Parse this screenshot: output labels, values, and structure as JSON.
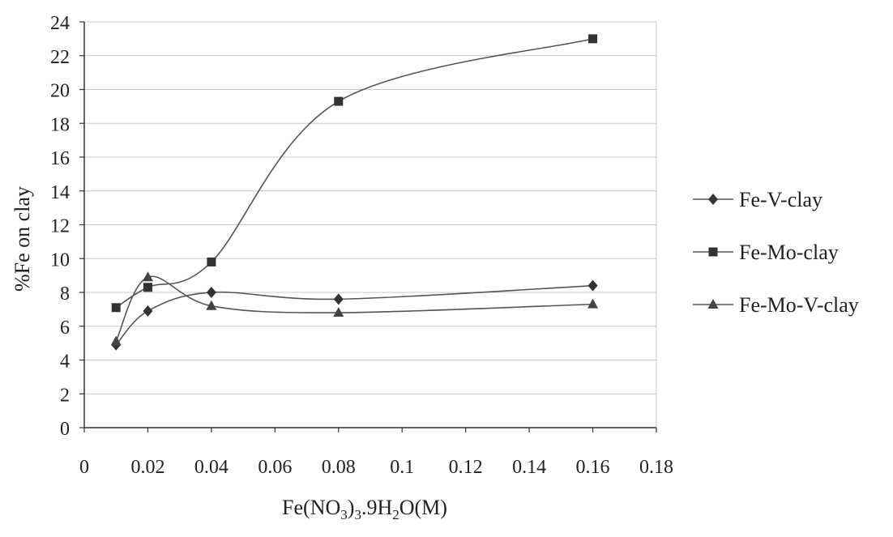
{
  "chart_data": {
    "type": "line",
    "ylabel": "%Fe on clay",
    "xlabel": {
      "parts": [
        "Fe(NO",
        "3",
        ")",
        "3",
        ".9H",
        "2",
        "O(M)"
      ]
    },
    "xlim": [
      0,
      0.18
    ],
    "ylim": [
      0,
      24
    ],
    "x_ticks": [
      "0",
      "0.02",
      "0.04",
      "0.06",
      "0.08",
      "0.1",
      "0.12",
      "0.14",
      "0.16",
      "0.18"
    ],
    "x_tick_values": [
      0,
      0.02,
      0.04,
      0.06,
      0.08,
      0.1,
      0.12,
      0.14,
      0.16,
      0.18
    ],
    "y_ticks": [
      "0",
      "2",
      "4",
      "6",
      "8",
      "10",
      "12",
      "14",
      "16",
      "18",
      "20",
      "22",
      "24"
    ],
    "y_tick_values": [
      0,
      2,
      4,
      6,
      8,
      10,
      12,
      14,
      16,
      18,
      20,
      22,
      24
    ],
    "grid": "horizontal",
    "legend_position": "right",
    "series": [
      {
        "name": "Fe-V-clay",
        "marker": "diamond",
        "x": [
          0.01,
          0.02,
          0.04,
          0.08,
          0.16
        ],
        "y": [
          4.9,
          6.9,
          8.0,
          7.6,
          8.4
        ]
      },
      {
        "name": "Fe-Mo-clay",
        "marker": "square",
        "x": [
          0.01,
          0.02,
          0.04,
          0.08,
          0.16
        ],
        "y": [
          7.1,
          8.3,
          9.8,
          19.3,
          23.0
        ]
      },
      {
        "name": "Fe-Mo-V-clay",
        "marker": "triangle",
        "x": [
          0.01,
          0.02,
          0.04,
          0.08,
          0.16
        ],
        "y": [
          5.1,
          8.9,
          7.2,
          6.8,
          7.3
        ]
      }
    ]
  }
}
